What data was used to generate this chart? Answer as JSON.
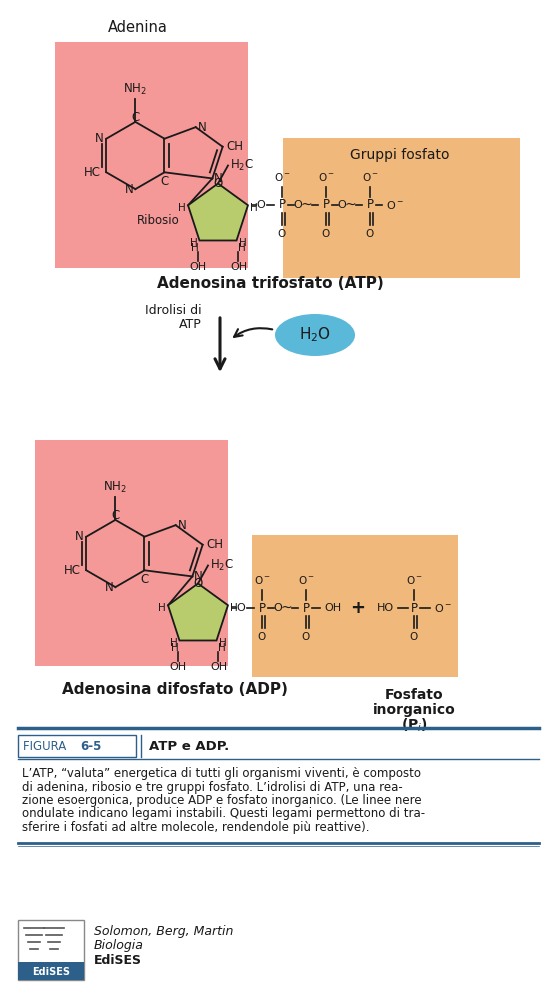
{
  "bg_color": "#ffffff",
  "pink_color": "#f49898",
  "orange_color": "#f0b87a",
  "green_color": "#b8cc6e",
  "cyan_color": "#5ab8d8",
  "dark_color": "#1a1a1a",
  "blue_header": "#2c5f8a",
  "figure_label": "FIGURA",
  "figure_number": "6-5",
  "figure_title": "ATP e ADP.",
  "caption_line1": "L’ATP, “valuta” energetica di tutti gli organismi viventi, è composto",
  "caption_line2": "di adenina, ribosio e tre gruppi fosfato. L’idrolisi di ATP, una rea-",
  "caption_line3": "zione esoergonica, produce ADP e fosfato inorganico. (Le linee nere",
  "caption_line4": "ondulate indicano legami instabili. Questi legami permettono di tra-",
  "caption_line5": "sferire i fosfati ad altre molecole, rendendole più reattive).",
  "label_adenina": "Adenina",
  "label_ribosio": "Ribosio",
  "label_gruppi_fosfato": "Gruppi fosfato",
  "label_idrolisi_1": "Idrolisi di",
  "label_idrolisi_2": "ATP",
  "label_h2o": "H$_2$O",
  "label_atp": "Adenosina trifosfato (ATP)",
  "label_adp": "Adenosina difosfato (ADP)",
  "label_fosfato_1": "Fosfato",
  "label_fosfato_2": "inorganico",
  "label_fosfato_3": "(P$_i$)",
  "author_line1": "Solomon, Berg, Martin",
  "author_line2": "Biologia",
  "author_line3": "EdiSES"
}
